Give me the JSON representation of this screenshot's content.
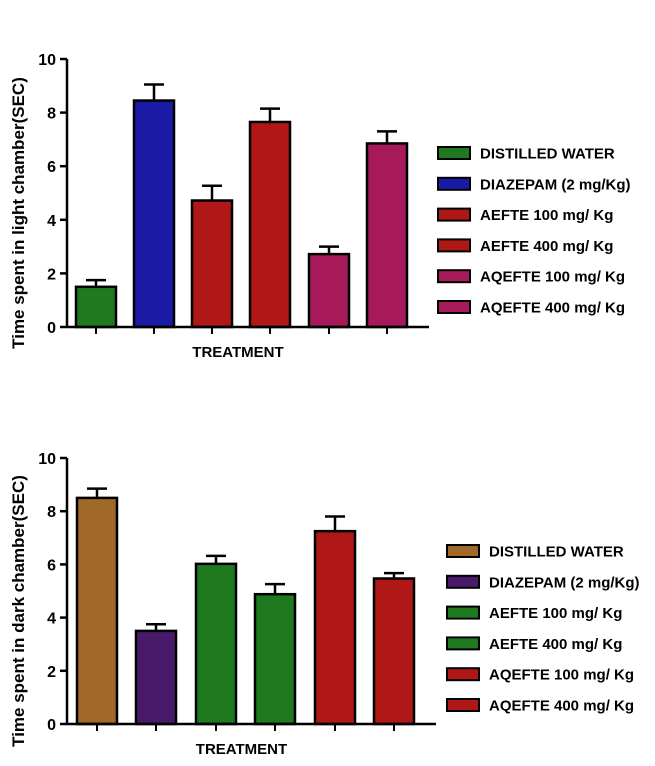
{
  "chart_data": [
    {
      "type": "bar",
      "xlabel": "TREATMENT",
      "ylabel": "Time spent in light chamber(SEC)",
      "ylim": [
        0,
        10
      ],
      "yticks": [
        "0",
        "2",
        "4",
        "6",
        "8",
        "10"
      ],
      "grid": false,
      "legend_position": "right",
      "categories": [
        "DISTILLED WATER",
        "DIAZEPAM (2 mg/Kg)",
        "AEFTE 100 mg/ Kg",
        "AEFTE 400 mg/ Kg",
        "AQEFTE 100 mg/ Kg",
        "AQEFTE 400 mg/ Kg"
      ],
      "values": [
        1.5,
        8.45,
        4.72,
        7.65,
        2.72,
        6.85
      ],
      "errors": [
        0.25,
        0.6,
        0.55,
        0.5,
        0.28,
        0.45
      ],
      "colors": [
        "#1f7a1f",
        "#1a1aa6",
        "#b01818",
        "#b01818",
        "#a61a5a",
        "#a61a5a"
      ]
    },
    {
      "type": "bar",
      "xlabel": "TREATMENT",
      "ylabel": "Time spent in dark chamber(SEC)",
      "ylim": [
        0,
        10
      ],
      "yticks": [
        "0",
        "2",
        "4",
        "6",
        "8",
        "10"
      ],
      "grid": false,
      "legend_position": "right",
      "categories": [
        "DISTILLED WATER",
        "DIAZEPAM (2 mg/Kg)",
        "AEFTE 100 mg/ Kg",
        "AEFTE 400 mg/ Kg",
        "AQEFTE 100 mg/ Kg",
        "AQEFTE 400 mg/ Kg"
      ],
      "values": [
        8.5,
        3.5,
        6.02,
        4.88,
        7.25,
        5.47
      ],
      "errors": [
        0.35,
        0.25,
        0.3,
        0.38,
        0.55,
        0.2
      ],
      "colors": [
        "#a0692a",
        "#4a1a6a",
        "#1f7a1f",
        "#1f7a1f",
        "#b01818",
        "#b01818"
      ]
    }
  ]
}
